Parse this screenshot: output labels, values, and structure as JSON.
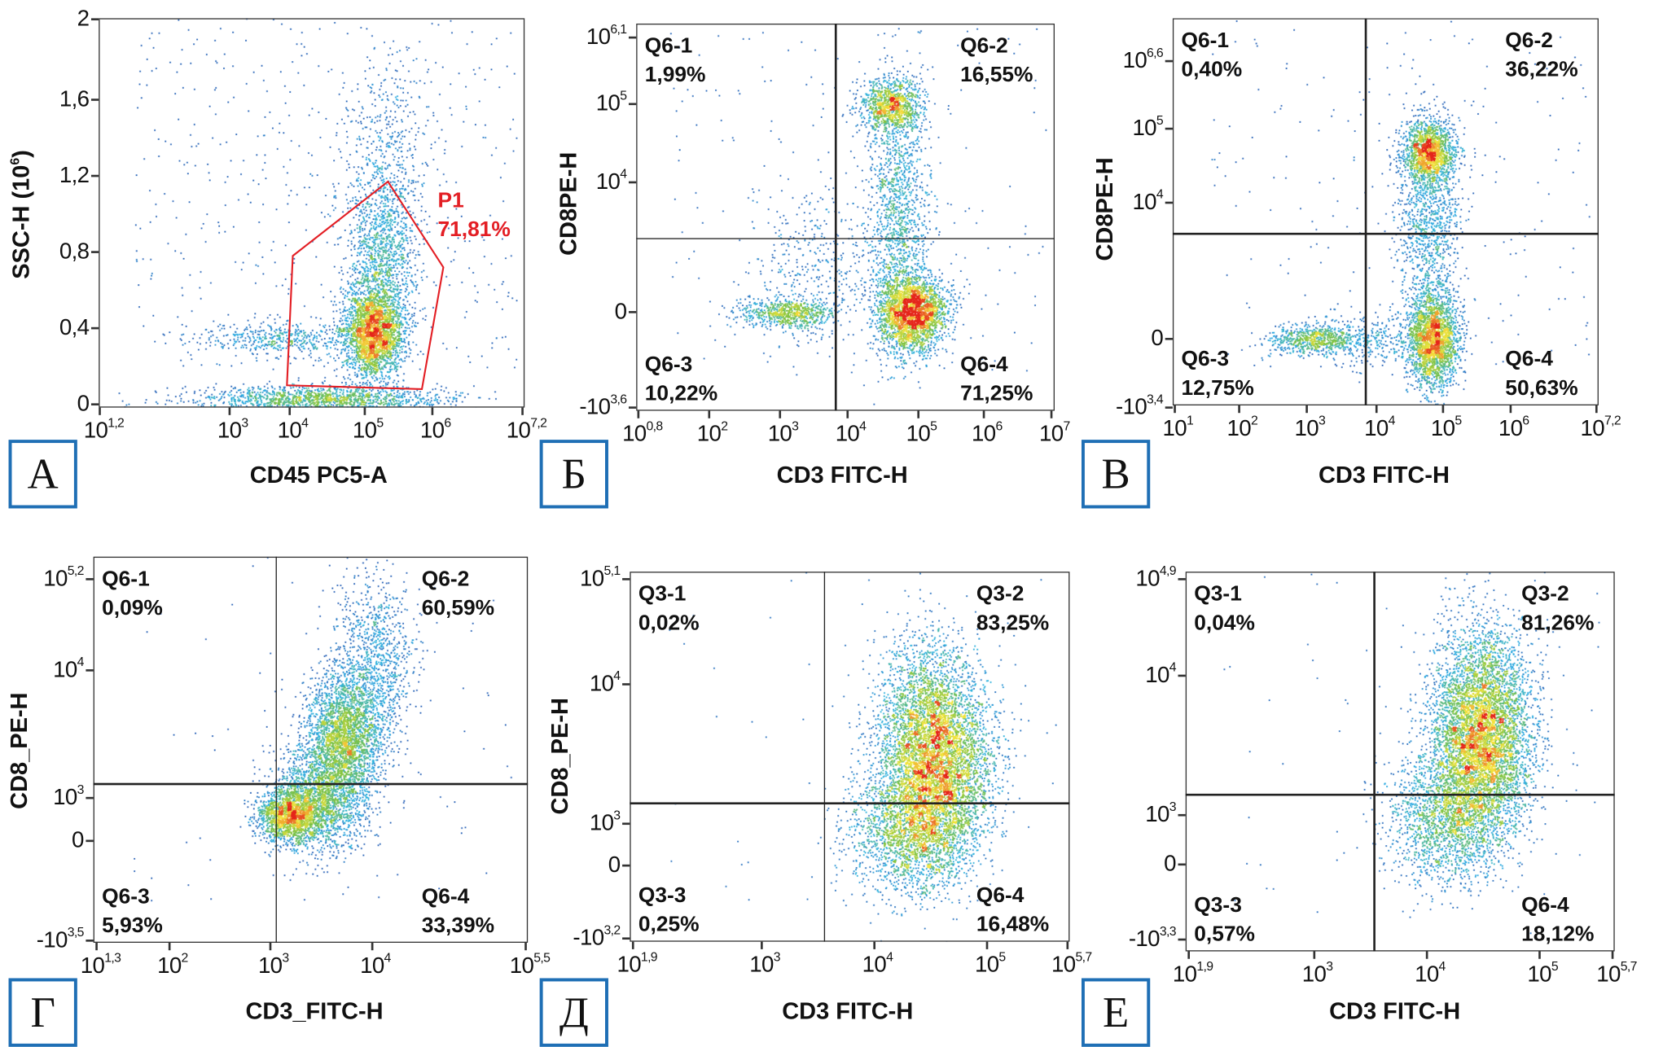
{
  "chart_data": [
    {
      "id": "A",
      "type": "scatter",
      "panel_letter": "А",
      "xlabel": "CD45 PC5-A",
      "ylabel": "SSC-H (10",
      "ylabel_sup": "6",
      "ylabel_end": ")",
      "x_scale": "log",
      "y_scale": "linear",
      "x_ticks": [
        {
          "label": "10",
          "sup": "1,2",
          "value": 15.85
        },
        {
          "label": "10",
          "sup": "3",
          "value": 1000
        },
        {
          "label": "10",
          "sup": "4",
          "value": 10000
        },
        {
          "label": "10",
          "sup": "5",
          "value": 100000
        },
        {
          "label": "10",
          "sup": "6",
          "value": 1000000
        },
        {
          "label": "10",
          "sup": "7,2",
          "value": 15848932
        }
      ],
      "y_ticks": [
        {
          "label": "2",
          "value": 2
        },
        {
          "label": "1,6",
          "value": 1.6
        },
        {
          "label": "1,2",
          "value": 1.2
        },
        {
          "label": "0,8",
          "value": 0.8
        },
        {
          "label": "0,4",
          "value": 0.4
        },
        {
          "label": "0",
          "value": 0
        }
      ],
      "gate": {
        "name": "P1",
        "percent": "71,81%",
        "color": "#e31e24",
        "vertices": [
          [
            11000,
            0.78
          ],
          [
            220000,
            1.17
          ],
          [
            1400000,
            0.72
          ],
          [
            700000,
            0.08
          ],
          [
            9000,
            0.1
          ]
        ]
      },
      "populations": [
        {
          "x": 130000,
          "y": 0.38
        },
        {
          "x": 180000,
          "y": 0.8
        },
        {
          "x": 25000,
          "y": 0.03
        },
        {
          "x": 8000,
          "y": 0.35
        },
        {
          "x": 200000,
          "y": 1.4
        }
      ]
    },
    {
      "id": "B",
      "type": "scatter",
      "panel_letter": "Б",
      "xlabel": "CD3 FITC-H",
      "ylabel": "CD8PE-H",
      "x_ticks": [
        {
          "label": "10",
          "sup": "0,8",
          "value": 6.31
        },
        {
          "label": "10",
          "sup": "2",
          "value": 100
        },
        {
          "label": "10",
          "sup": "3",
          "value": 1000
        },
        {
          "label": "10",
          "sup": "4",
          "value": 10000
        },
        {
          "label": "10",
          "sup": "5",
          "value": 100000
        },
        {
          "label": "10",
          "sup": "6",
          "value": 1000000
        },
        {
          "label": "10",
          "sup": "7",
          "value": 10000000
        }
      ],
      "y_ticks": [
        {
          "label": "10",
          "sup": "6,1",
          "value": 1258925
        },
        {
          "label": "10",
          "sup": "5",
          "value": 100000
        },
        {
          "label": "10",
          "sup": "4",
          "value": 10000
        },
        {
          "label": "0",
          "value": 0
        },
        {
          "label": "-10",
          "sup": "3,6",
          "value": -3981
        }
      ],
      "quadrant_gates": {
        "x": 6700,
        "y": 1000
      },
      "quadrants": [
        {
          "name": "Q6-1",
          "percent": "1,99%"
        },
        {
          "name": "Q6-2",
          "percent": "16,55%"
        },
        {
          "name": "Q6-3",
          "percent": "10,22%"
        },
        {
          "name": "Q6-4",
          "percent": "71,25%"
        }
      ],
      "populations": [
        {
          "x": 80000,
          "y": 0
        },
        {
          "x": 40000,
          "y": 100000
        },
        {
          "x": 50000,
          "y": 3000
        },
        {
          "x": 1300,
          "y": 0
        },
        {
          "x": 3000,
          "y": 300
        }
      ]
    },
    {
      "id": "C",
      "type": "scatter",
      "panel_letter": "В",
      "xlabel": "CD3 FITC-H",
      "ylabel": "CD8PE-H",
      "x_ticks": [
        {
          "label": "10",
          "sup": "1",
          "value": 10
        },
        {
          "label": "10",
          "sup": "2",
          "value": 100
        },
        {
          "label": "10",
          "sup": "3",
          "value": 1000
        },
        {
          "label": "10",
          "sup": "4",
          "value": 10000
        },
        {
          "label": "10",
          "sup": "5",
          "value": 100000
        },
        {
          "label": "10",
          "sup": "6",
          "value": 1000000
        },
        {
          "label": "10",
          "sup": "7,2",
          "value": 15848932
        }
      ],
      "y_ticks": [
        {
          "label": "10",
          "sup": "6,6",
          "value": 3981072
        },
        {
          "label": "10",
          "sup": "5",
          "value": 100000
        },
        {
          "label": "10",
          "sup": "4",
          "value": 10000
        },
        {
          "label": "0",
          "value": 0
        },
        {
          "label": "-10",
          "sup": "3,4",
          "value": -2512
        }
      ],
      "quadrant_gates": {
        "x": 7000,
        "y": 3000
      },
      "quadrants": [
        {
          "name": "Q6-1",
          "percent": "0,40%"
        },
        {
          "name": "Q6-2",
          "percent": "36,22%"
        },
        {
          "name": "Q6-3",
          "percent": "12,75%"
        },
        {
          "name": "Q6-4",
          "percent": "50,63%"
        }
      ],
      "populations": [
        {
          "x": 70000,
          "y": 0
        },
        {
          "x": 60000,
          "y": 50000
        },
        {
          "x": 60000,
          "y": 5000
        },
        {
          "x": 1200,
          "y": 0
        },
        {
          "x": 8000,
          "y": 0
        }
      ]
    },
    {
      "id": "D",
      "type": "scatter",
      "panel_letter": "Г",
      "xlabel": "CD3_FITC-H",
      "ylabel": "CD8_PE-H",
      "x_ticks": [
        {
          "label": "10",
          "sup": "1,3",
          "value": 19.95
        },
        {
          "label": "10",
          "sup": "2",
          "value": 100
        },
        {
          "label": "10",
          "sup": "3",
          "value": 1000
        },
        {
          "label": "10",
          "sup": "4",
          "value": 10000
        },
        {
          "label": "10",
          "sup": "5,5",
          "value": 316228
        }
      ],
      "y_ticks": [
        {
          "label": "10",
          "sup": "5,2",
          "value": 158489
        },
        {
          "label": "10",
          "sup": "4",
          "value": 10000
        },
        {
          "label": "10",
          "sup": "3",
          "value": 1000
        },
        {
          "label": "0",
          "value": 0
        },
        {
          "label": "-10",
          "sup": "3,5",
          "value": -3162
        }
      ],
      "quadrant_gates": {
        "x": 1150,
        "y": 1290
      },
      "quadrants": [
        {
          "name": "Q6-1",
          "percent": "0,09%"
        },
        {
          "name": "Q6-2",
          "percent": "60,59%"
        },
        {
          "name": "Q6-3",
          "percent": "5,93%"
        },
        {
          "name": "Q6-4",
          "percent": "33,39%"
        }
      ],
      "populations": [
        {
          "x": 1500,
          "y": 300
        },
        {
          "x": 5000,
          "y": 3000
        },
        {
          "x": 10000,
          "y": 10000
        },
        {
          "x": 3000,
          "y": 1000
        }
      ]
    },
    {
      "id": "E",
      "type": "scatter",
      "panel_letter": "Д",
      "xlabel": "CD3 FITC-H",
      "ylabel": "CD8_PE-H",
      "x_ticks": [
        {
          "label": "10",
          "sup": "1,9",
          "value": 79.4
        },
        {
          "label": "10",
          "sup": "3",
          "value": 1000
        },
        {
          "label": "10",
          "sup": "4",
          "value": 10000
        },
        {
          "label": "10",
          "sup": "5",
          "value": 100000
        },
        {
          "label": "10",
          "sup": "5,7",
          "value": 501187
        }
      ],
      "y_ticks": [
        {
          "label": "10",
          "sup": "5,1",
          "value": 125893
        },
        {
          "label": "10",
          "sup": "4",
          "value": 10000
        },
        {
          "label": "10",
          "sup": "3",
          "value": 1000
        },
        {
          "label": "0",
          "value": 0
        },
        {
          "label": "-10",
          "sup": "3,2",
          "value": -1585
        }
      ],
      "quadrant_gates": {
        "x": 3600,
        "y": 1400
      },
      "quadrants": [
        {
          "name": "Q3-1",
          "percent": "0,02%"
        },
        {
          "name": "Q3-2",
          "percent": "83,25%"
        },
        {
          "name": "Q3-3",
          "percent": "0,25%"
        },
        {
          "name": "Q6-4",
          "percent": "16,48%"
        }
      ],
      "populations": [
        {
          "x": 35000,
          "y": 2500
        },
        {
          "x": 30000,
          "y": 6000
        },
        {
          "x": 20000,
          "y": 600
        }
      ]
    },
    {
      "id": "F",
      "type": "scatter",
      "panel_letter": "Е",
      "xlabel": "CD3 FITC-H",
      "ylabel": "",
      "x_ticks": [
        {
          "label": "10",
          "sup": "1,9",
          "value": 79.4
        },
        {
          "label": "10",
          "sup": "3",
          "value": 1000
        },
        {
          "label": "10",
          "sup": "4",
          "value": 10000
        },
        {
          "label": "10",
          "sup": "5",
          "value": 100000
        },
        {
          "label": "10",
          "sup": "5,7",
          "value": 501187
        }
      ],
      "y_ticks": [
        {
          "label": "10",
          "sup": "4,9",
          "value": 79433
        },
        {
          "label": "10",
          "sup": "4",
          "value": 10000
        },
        {
          "label": "10",
          "sup": "3",
          "value": 1000
        },
        {
          "label": "0",
          "value": 0
        },
        {
          "label": "-10",
          "sup": "3,3",
          "value": -1995
        }
      ],
      "quadrant_gates": {
        "x": 3400,
        "y": 1400
      },
      "quadrants": [
        {
          "name": "Q3-1",
          "percent": "0,04%"
        },
        {
          "name": "Q3-2",
          "percent": "81,26%"
        },
        {
          "name": "Q3-3",
          "percent": "0,57%"
        },
        {
          "name": "Q6-4",
          "percent": "18,12%"
        }
      ],
      "populations": [
        {
          "x": 30000,
          "y": 3000
        },
        {
          "x": 30000,
          "y": 8000
        },
        {
          "x": 15000,
          "y": 800
        }
      ]
    }
  ],
  "colors": {
    "density_low": "#2a46a6",
    "density_mid1": "#2cb0e4",
    "density_mid2": "#7cc242",
    "density_mid3": "#f4e43a",
    "density_high": "#e5261b",
    "panel_letter_border": "#1f6fb5"
  }
}
